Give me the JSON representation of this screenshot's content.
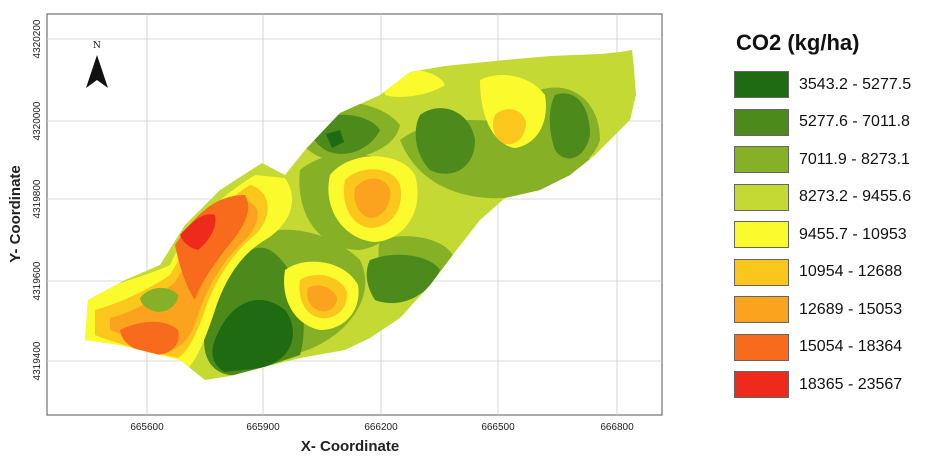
{
  "map": {
    "x_axis_title": "X- Coordinate",
    "y_axis_title": "Y- Coordinate",
    "x_ticks": [
      "665600",
      "665900",
      "666200",
      "666500",
      "666800"
    ],
    "y_ticks": [
      "4320200",
      "4320000",
      "4319800",
      "4319600",
      "4319400"
    ],
    "north_label": "N"
  },
  "legend": {
    "title": "CO2 (kg/ha)",
    "classes": [
      {
        "label": "3543.2 - 5277.5",
        "color": "#1e6b12"
      },
      {
        "label": "5277.6 - 7011.8",
        "color": "#4c8a1c"
      },
      {
        "label": "7011.9 - 8273.1",
        "color": "#86b126"
      },
      {
        "label": "8273.2 - 9455.6",
        "color": "#c4d934"
      },
      {
        "label": "9455.7 - 10953",
        "color": "#fafa2c"
      },
      {
        "label": "10954 - 12688",
        "color": "#fbc71c"
      },
      {
        "label": "12689 - 15053",
        "color": "#fba21e"
      },
      {
        "label": "15054 - 18364",
        "color": "#f86a1c"
      },
      {
        "label": "18365 - 23567",
        "color": "#ee2a1c"
      }
    ]
  }
}
